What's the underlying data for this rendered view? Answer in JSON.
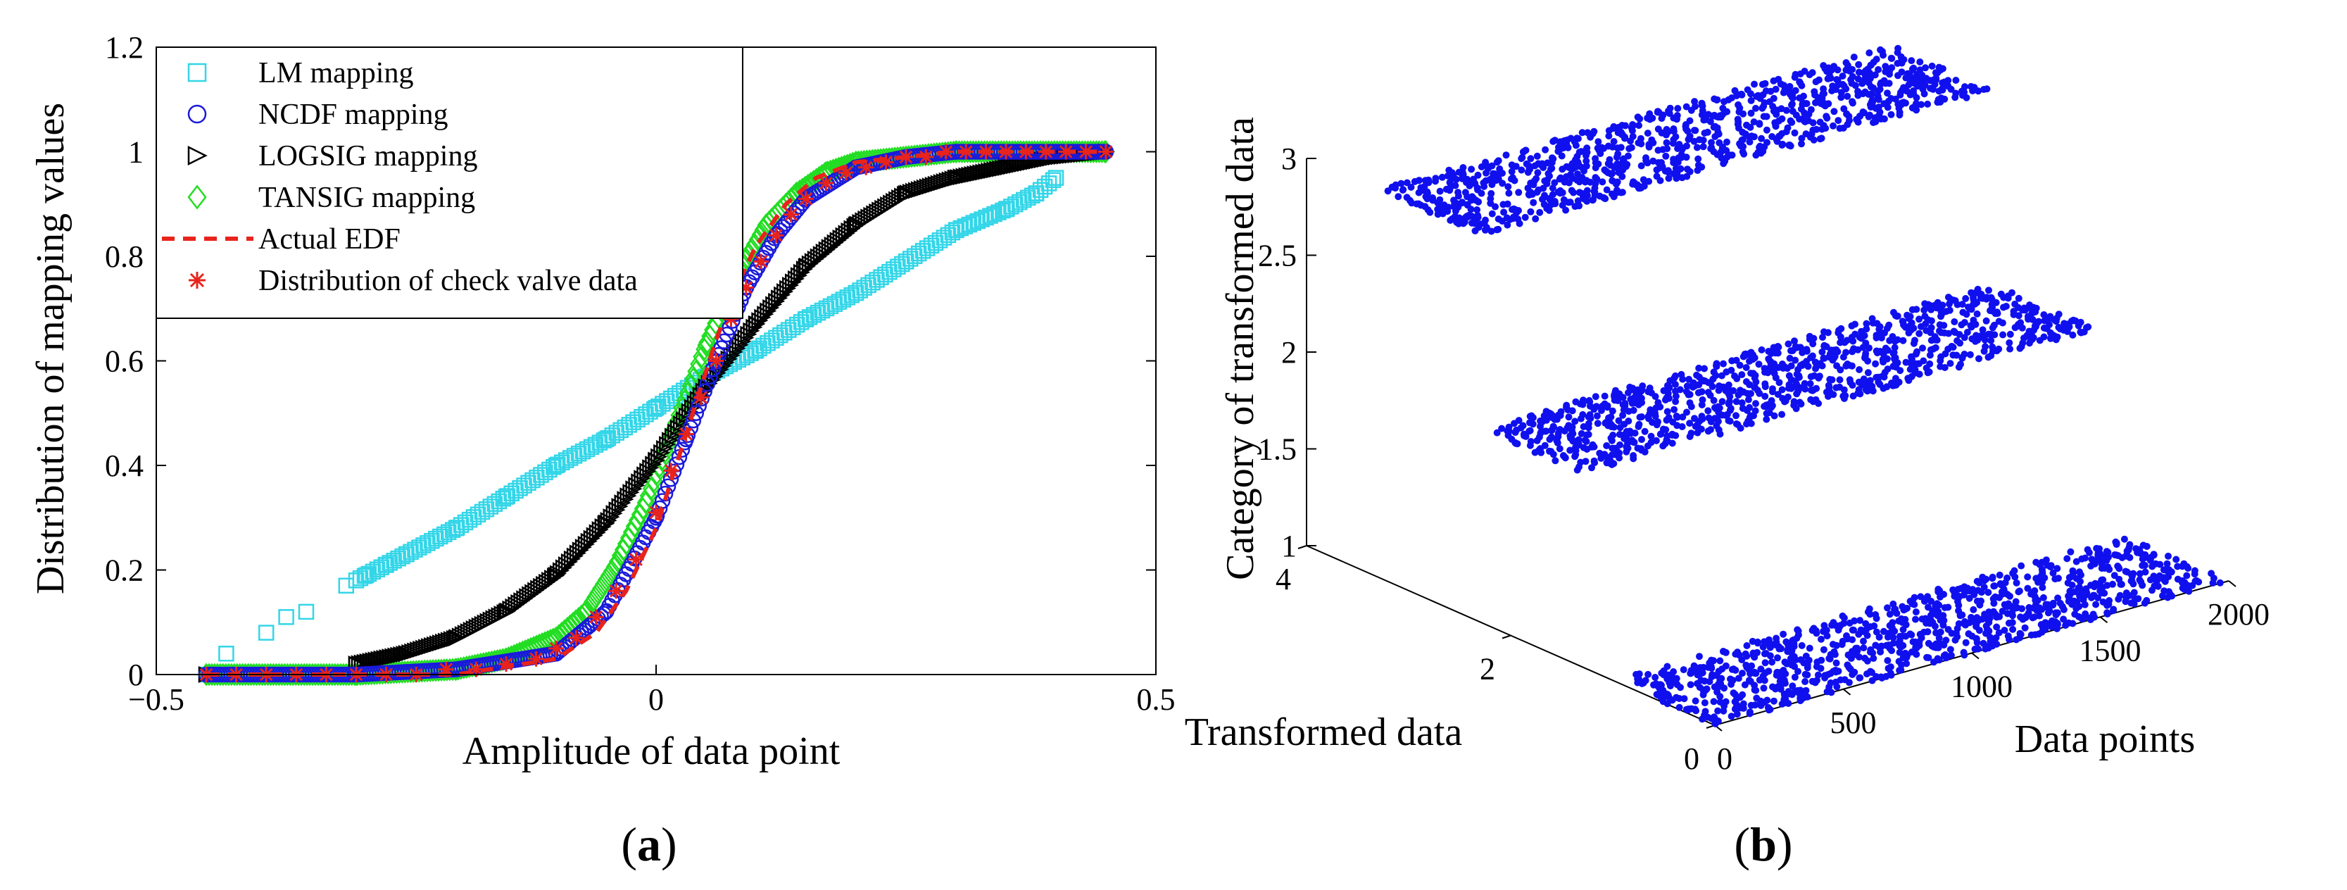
{
  "chart_data": [
    {
      "panel": "a",
      "type": "scatter",
      "xlabel": "Amplitude of data point",
      "ylabel": "Distribution of mapping values",
      "xlim": [
        -0.5,
        0.5
      ],
      "ylim": [
        0,
        1.2
      ],
      "xticks": [
        -0.5,
        0,
        0.5
      ],
      "xtick_labels": [
        "−0.5",
        "0",
        "0.5"
      ],
      "yticks": [
        0,
        0.2,
        0.4,
        0.6,
        0.8,
        1,
        1.2
      ],
      "ytick_labels": [
        "0",
        "0.2",
        "0.4",
        "0.6",
        "0.8",
        "1",
        "1.2"
      ],
      "legend_position": "top-left",
      "series": [
        {
          "name": "LM mapping",
          "marker": "square",
          "color": "#33d6e8",
          "x": [
            -0.45,
            -0.43,
            -0.41,
            -0.39,
            -0.37,
            -0.35,
            -0.33,
            -0.31,
            -0.29,
            -0.27,
            -0.25,
            -0.2,
            -0.15,
            -0.1,
            -0.05,
            0,
            0.05,
            0.1,
            0.15,
            0.2,
            0.25,
            0.3,
            0.35,
            0.38,
            0.4
          ],
          "y": [
            0.0,
            0.04,
            0.0,
            0.08,
            0.11,
            0.12,
            0.0,
            0.17,
            0.19,
            0.21,
            0.23,
            0.28,
            0.34,
            0.4,
            0.45,
            0.51,
            0.57,
            0.62,
            0.68,
            0.73,
            0.79,
            0.85,
            0.89,
            0.92,
            0.95
          ]
        },
        {
          "name": "NCDF mapping",
          "marker": "circle",
          "color": "#1a1adb",
          "x": [
            -0.45,
            -0.3,
            -0.2,
            -0.1,
            -0.05,
            0,
            0.03,
            0.06,
            0.09,
            0.12,
            0.15,
            0.2,
            0.25,
            0.3,
            0.45
          ],
          "y": [
            0.0,
            0.0,
            0.01,
            0.04,
            0.12,
            0.3,
            0.45,
            0.6,
            0.74,
            0.84,
            0.91,
            0.97,
            0.99,
            1.0,
            1.0
          ]
        },
        {
          "name": "LOGSIG mapping",
          "marker": "triangle-right",
          "color": "#000000",
          "x": [
            -0.45,
            -0.3,
            -0.25,
            -0.2,
            -0.15,
            -0.1,
            -0.05,
            0,
            0.05,
            0.1,
            0.15,
            0.2,
            0.25,
            0.3,
            0.35,
            0.4,
            0.45
          ],
          "y": [
            0.0,
            0.02,
            0.04,
            0.07,
            0.12,
            0.19,
            0.29,
            0.41,
            0.55,
            0.67,
            0.78,
            0.86,
            0.92,
            0.95,
            0.97,
            0.99,
            1.0
          ]
        },
        {
          "name": "TANSIG mapping",
          "marker": "diamond",
          "color": "#22dd22",
          "x": [
            -0.45,
            -0.3,
            -0.2,
            -0.15,
            -0.1,
            -0.07,
            -0.04,
            -0.01,
            0.02,
            0.05,
            0.08,
            0.11,
            0.14,
            0.17,
            0.2,
            0.25,
            0.3,
            0.45
          ],
          "y": [
            0.0,
            0.0,
            0.01,
            0.03,
            0.07,
            0.12,
            0.21,
            0.33,
            0.48,
            0.63,
            0.76,
            0.86,
            0.92,
            0.96,
            0.98,
            0.99,
            1.0,
            1.0
          ]
        },
        {
          "name": "Actual EDF",
          "marker": "dashed-line",
          "color": "#e8231c",
          "x": [
            -0.45,
            -0.2,
            -0.1,
            -0.06,
            -0.03,
            0,
            0.02,
            0.04,
            0.06,
            0.08,
            0.1,
            0.13,
            0.16,
            0.2,
            0.3,
            0.45
          ],
          "y": [
            0.0,
            0.0,
            0.03,
            0.08,
            0.16,
            0.28,
            0.4,
            0.52,
            0.64,
            0.74,
            0.82,
            0.9,
            0.95,
            0.98,
            1.0,
            1.0
          ]
        },
        {
          "name": "Distribution of check valve data",
          "marker": "asterisk",
          "color": "#e8231c",
          "x": [
            -0.45,
            -0.42,
            -0.39,
            -0.36,
            -0.33,
            -0.3,
            -0.27,
            -0.24,
            -0.21,
            -0.18,
            -0.15,
            -0.12,
            -0.1,
            -0.08,
            -0.06,
            -0.04,
            -0.02,
            0,
            0.015,
            0.03,
            0.045,
            0.06,
            0.075,
            0.09,
            0.105,
            0.12,
            0.135,
            0.15,
            0.17,
            0.19,
            0.21,
            0.23,
            0.25,
            0.27,
            0.29,
            0.31,
            0.33,
            0.35,
            0.37,
            0.39,
            0.41,
            0.43,
            0.45
          ],
          "y": [
            0.0,
            0.0,
            0.0,
            0.0,
            0.0,
            0.0,
            0.0,
            0.0,
            0.01,
            0.01,
            0.02,
            0.03,
            0.05,
            0.07,
            0.11,
            0.16,
            0.22,
            0.31,
            0.39,
            0.46,
            0.53,
            0.6,
            0.68,
            0.74,
            0.79,
            0.84,
            0.88,
            0.91,
            0.94,
            0.96,
            0.97,
            0.98,
            0.99,
            0.99,
            1.0,
            1.0,
            1.0,
            1.0,
            1.0,
            1.0,
            1.0,
            1.0,
            1.0
          ]
        }
      ],
      "panel_label_open": "(",
      "panel_label": "a",
      "panel_label_close": ")"
    },
    {
      "panel": "b",
      "type": "scatter",
      "projection": "3d",
      "xlabel": "Data points",
      "ylabel": "Transformed data",
      "zlabel": "Category of transformed data",
      "xlim": [
        0,
        2000
      ],
      "ylim": [
        0,
        4
      ],
      "zlim": [
        1,
        3
      ],
      "xticks": [
        0,
        500,
        1000,
        1500,
        2000
      ],
      "yticks": [
        0,
        2,
        4
      ],
      "zticks": [
        1,
        1.5,
        2,
        2.5,
        3
      ],
      "ztick_labels": [
        "1",
        "1.5",
        "2",
        "2.5",
        "3"
      ],
      "series": [
        {
          "category": 1,
          "color": "#1010ee",
          "n_points": 1000,
          "x_range": [
            0,
            2000
          ],
          "y_range": [
            0,
            1
          ]
        },
        {
          "category": 2,
          "color": "#1010ee",
          "n_points": 1000,
          "x_range": [
            0,
            2000
          ],
          "y_range": [
            1.3,
            2.3
          ]
        },
        {
          "category": 3,
          "color": "#1010ee",
          "n_points": 1000,
          "x_range": [
            0,
            2000
          ],
          "y_range": [
            2.3,
            3.3
          ]
        }
      ],
      "panel_label_open": "(",
      "panel_label": "b",
      "panel_label_close": ")"
    }
  ]
}
